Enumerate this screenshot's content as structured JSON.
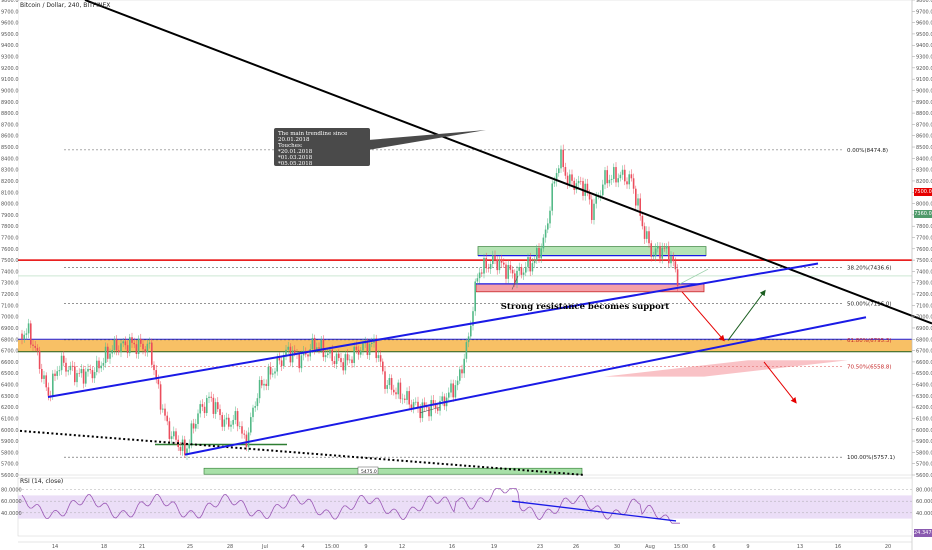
{
  "header": {
    "title": "Bitcoin / Dollar, 240, BITFINEX",
    "rsi_title": "RSI (14, close)"
  },
  "annotations": {
    "note_lines": [
      "The main trendline since 20.01.2018",
      "Touches:",
      "*20.01.2018",
      "*01.03.2018",
      "*05.05.2018"
    ],
    "banner": "Strong resistance becomes support",
    "hidden_label": "5475.0"
  },
  "colors": {
    "candle_up": "#53b987",
    "candle_down": "#eb4d5c",
    "trendline_black": "#000000",
    "channel_blue": "#1a1ae6",
    "resistance_red": "#e60000",
    "zone_orange": "#f7b54a",
    "zone_green": "#a8e0a8",
    "zone_pink": "#f5a0a8",
    "rsi_band": "#e6d6f5",
    "rsi_line": "#9b59b6"
  },
  "price_tags": {
    "current": "7360.0",
    "resistance": "7500.0",
    "rsi_value": "24.3478"
  },
  "chart_data": {
    "type": "candlestick",
    "title": "Bitcoin / Dollar, 240, BITFINEX",
    "ylim": [
      5600,
      9800
    ],
    "y_ticks": [
      9800,
      9700,
      9600,
      9500,
      9400,
      9300,
      9200,
      9100,
      9000,
      8900,
      8800,
      8700,
      8600,
      8500,
      8400,
      8300,
      8200,
      8100,
      8000,
      7900,
      7800,
      7700,
      7600,
      7500,
      7400,
      7300,
      7200,
      7100,
      7000,
      6900,
      6800,
      6700,
      6600,
      6500,
      6400,
      6300,
      6200,
      6100,
      6000,
      5900,
      5800,
      5700,
      5600
    ],
    "y_tick_labels": [
      "9800.0",
      "9700.0",
      "9600.0",
      "9500.0",
      "9400.0",
      "9300.0",
      "9200.0",
      "9100.0",
      "9000.0",
      "8900.0",
      "8800.0",
      "8700.0",
      "8600.0",
      "8500.0",
      "8400.0",
      "8300.0",
      "8200.0",
      "8100.0",
      "8000.0",
      "7900.0",
      "7800.0",
      "7700.0",
      "7600.0",
      "7500.0",
      "7400.0",
      "7300.0",
      "7200.0",
      "7100.0",
      "7000.0",
      "6900.0",
      "6800.0",
      "6700.0",
      "6600.0",
      "6500.0",
      "6400.0",
      "6300.0",
      "6200.0",
      "6100.0",
      "6000.0",
      "5900.0",
      "5800.0",
      "5700.0",
      "5600.0"
    ],
    "x_labels": [
      "14",
      "18",
      "21",
      "25",
      "28",
      "Jul",
      "4",
      "15:00",
      "9",
      "12",
      "16",
      "19",
      "23",
      "26",
      "30",
      "Aug",
      "15:00",
      "6",
      "9",
      "13",
      "16",
      "20"
    ],
    "fibonacci": [
      {
        "label": "0.00%(8474.8)",
        "value": 8474.8
      },
      {
        "label": "38.20%(7436.6)",
        "value": 7436.6
      },
      {
        "label": "50.00%(7116.0)",
        "value": 7116.0
      },
      {
        "label": "61.80%(6795.3)",
        "value": 6795.3
      },
      {
        "label": "70.50%(6558.8)",
        "value": 6558.8
      },
      {
        "label": "100.00%(5757.1)",
        "value": 5757.1
      }
    ],
    "resistance_level": 7500,
    "current_price": 7360,
    "support_zone": [
      6690,
      6800
    ],
    "rsi": {
      "ylim": [
        0,
        100
      ],
      "y_ticks": [
        80,
        60,
        40
      ],
      "y_tick_labels": [
        "80.0000",
        "60.0000",
        "40.0000"
      ],
      "band": [
        30,
        70
      ],
      "last": 24.3478
    }
  }
}
